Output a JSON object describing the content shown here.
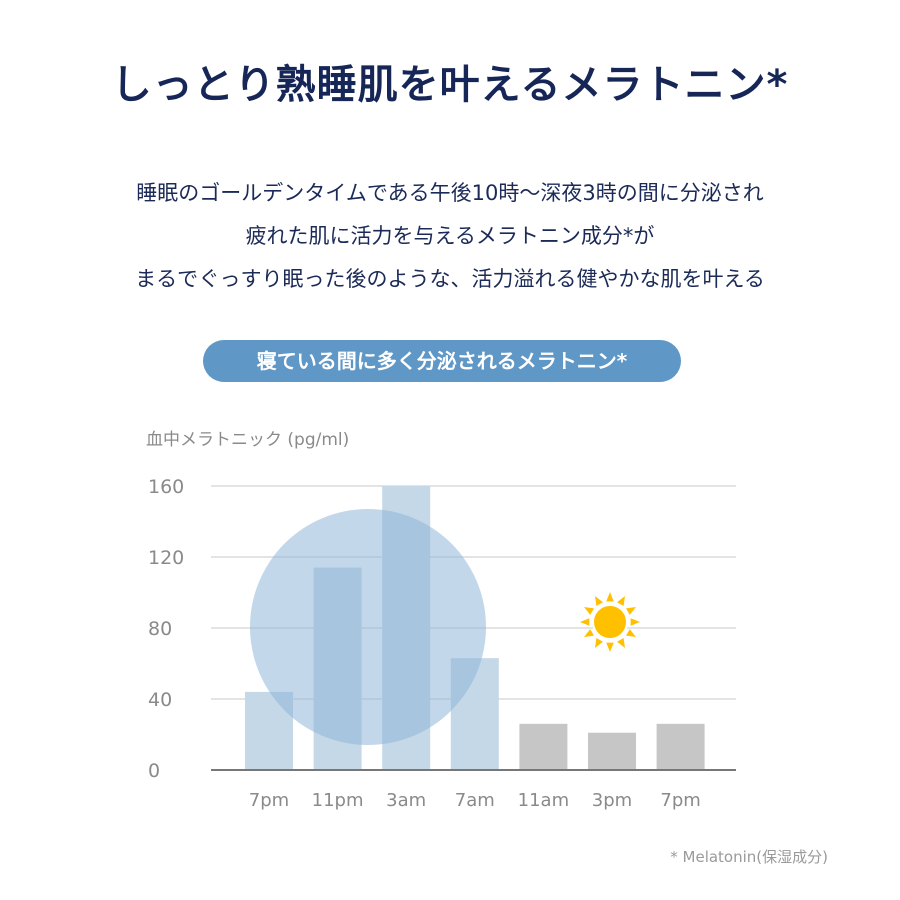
{
  "title": "しっとり熟睡肌を叶えるメラトニン*",
  "description": [
    "睡眠のゴールデンタイムである午後10時〜深夜3時の間に分泌され",
    "疲れた肌に活力を与えるメラトニン成分*が",
    "まるでぐっすり眠った後のような、活力溢れる健やかな肌を叶える"
  ],
  "pill_label": "寝ている間に多く分泌されるメラトニン*",
  "footnote": "* Melatonin(保湿成分)",
  "colors": {
    "title": "#152657",
    "pill": "#5f97c6",
    "night_bar": "#c5d8e8",
    "day_bar": "#c6c6c6",
    "night_circle": "#8fb7d9",
    "icon": "#ffc000"
  },
  "chart_data": {
    "type": "bar",
    "title": "",
    "ylabel": "血中メラトニック (pg/ml)",
    "xlabel": "",
    "categories": [
      "7pm",
      "11pm",
      "3am",
      "7am",
      "11am",
      "3pm",
      "7pm"
    ],
    "values": [
      44,
      114,
      160,
      63,
      26,
      21,
      26
    ],
    "period": [
      "night",
      "night",
      "night",
      "night",
      "day",
      "day",
      "day"
    ],
    "ylim": [
      0,
      160
    ],
    "yticks": [
      "0",
      "40",
      "80",
      "120",
      "160"
    ],
    "grid": true,
    "icons": [
      "moon-icon",
      "sun-icon"
    ]
  }
}
